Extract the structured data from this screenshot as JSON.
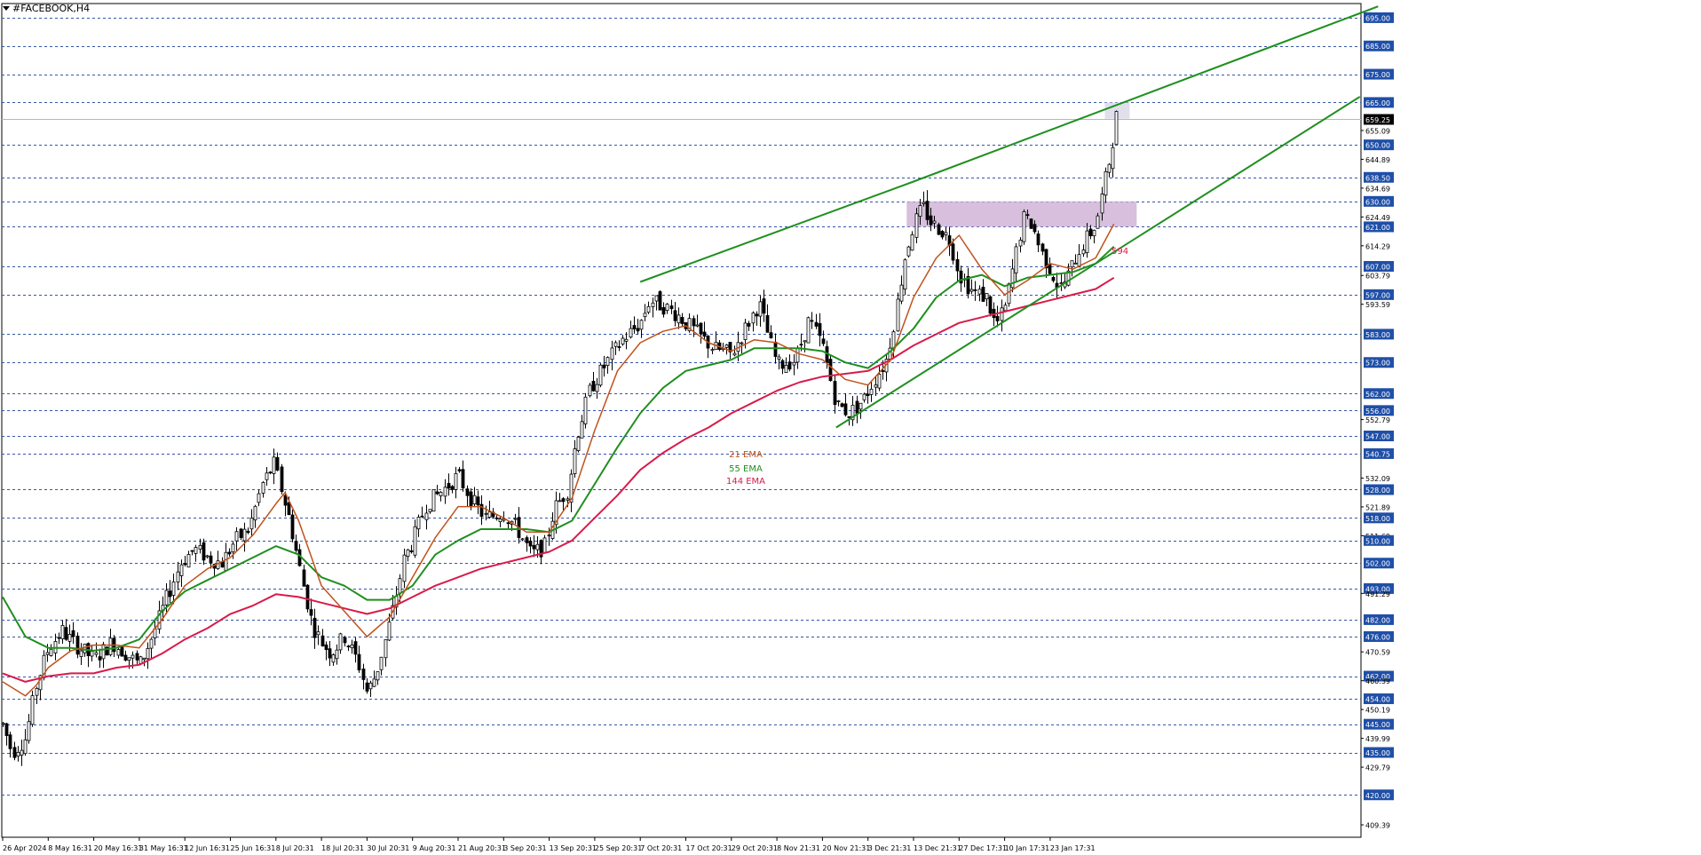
{
  "window": {
    "title": "#FACEBOOK,H4"
  },
  "colors": {
    "background": "#ffffff",
    "grid": "#3355aa",
    "candle": "#000000",
    "ema21": "#c0521b",
    "ema55": "#1f8f1f",
    "ema144": "#d81b4a",
    "trendline": "#1f8f1f",
    "zone": "#c9a9d1",
    "label_bg": "#1f4fa8",
    "current_bg": "#000000"
  },
  "chart_data": {
    "type": "candlestick",
    "title": "#FACEBOOK,H4",
    "ylim": [
      405,
      700
    ],
    "price_labels": [
      {
        "text": "695.00",
        "value": 695,
        "level": true
      },
      {
        "text": "685.00",
        "value": 685,
        "level": true
      },
      {
        "text": "675.00",
        "value": 675,
        "level": true
      },
      {
        "text": "665.00",
        "value": 665,
        "level": true
      },
      {
        "text": "655.09",
        "value": 655.09,
        "level": false
      },
      {
        "text": "650.00",
        "value": 650,
        "level": true
      },
      {
        "text": "644.89",
        "value": 644.89,
        "level": false
      },
      {
        "text": "638.50",
        "value": 638.5,
        "level": true
      },
      {
        "text": "634.69",
        "value": 634.69,
        "level": false
      },
      {
        "text": "630.00",
        "value": 630,
        "level": true
      },
      {
        "text": "624.49",
        "value": 624.49,
        "level": false
      },
      {
        "text": "621.00",
        "value": 621,
        "level": true
      },
      {
        "text": "614.29",
        "value": 614.29,
        "level": false
      },
      {
        "text": "607.00",
        "value": 607,
        "level": true
      },
      {
        "text": "603.79",
        "value": 603.79,
        "level": false
      },
      {
        "text": "597.00",
        "value": 597,
        "level": true
      },
      {
        "text": "593.59",
        "value": 593.59,
        "level": false
      },
      {
        "text": "583.00",
        "value": 583,
        "level": true
      },
      {
        "text": "573.00",
        "value": 573,
        "level": true
      },
      {
        "text": "562.00",
        "value": 562,
        "level": true
      },
      {
        "text": "556.00",
        "value": 556,
        "level": true
      },
      {
        "text": "552.79",
        "value": 552.79,
        "level": false
      },
      {
        "text": "547.00",
        "value": 547,
        "level": true
      },
      {
        "text": "540.75",
        "value": 540.75,
        "level": true
      },
      {
        "text": "532.09",
        "value": 532.09,
        "level": false
      },
      {
        "text": "528.00",
        "value": 528,
        "level": true
      },
      {
        "text": "521.89",
        "value": 521.89,
        "level": false
      },
      {
        "text": "518.00",
        "value": 518,
        "level": true
      },
      {
        "text": "511.69",
        "value": 511.69,
        "level": false
      },
      {
        "text": "510.00",
        "value": 510,
        "level": true
      },
      {
        "text": "502.00",
        "value": 502,
        "level": true
      },
      {
        "text": "493.00",
        "value": 493,
        "level": true
      },
      {
        "text": "491.29",
        "value": 491.29,
        "level": false
      },
      {
        "text": "482.00",
        "value": 482,
        "level": true
      },
      {
        "text": "476.00",
        "value": 476,
        "level": true
      },
      {
        "text": "470.59",
        "value": 470.59,
        "level": false
      },
      {
        "text": "462.00",
        "value": 462,
        "level": true
      },
      {
        "text": "460.39",
        "value": 460.39,
        "level": false
      },
      {
        "text": "454.00",
        "value": 454,
        "level": true
      },
      {
        "text": "450.19",
        "value": 450.19,
        "level": false
      },
      {
        "text": "445.00",
        "value": 445,
        "level": true
      },
      {
        "text": "439.99",
        "value": 439.99,
        "level": false
      },
      {
        "text": "435.00",
        "value": 435,
        "level": true
      },
      {
        "text": "429.79",
        "value": 429.79,
        "level": false
      },
      {
        "text": "420.00",
        "value": 420,
        "level": true
      },
      {
        "text": "409.39",
        "value": 409.39,
        "level": false
      }
    ],
    "current_price": {
      "text": "659.25",
      "value": 659.25
    },
    "x_labels": [
      "26 Apr 2024",
      "8 May 16:31",
      "20 May 16:31",
      "31 May 16:31",
      "12 Jun 16:31",
      "25 Jun 16:31",
      "8 Jul 20:31",
      "18 Jul 20:31",
      "30 Jul 20:31",
      "9 Aug 20:31",
      "21 Aug 20:31",
      "3 Sep 20:31",
      "13 Sep 20:31",
      "25 Sep 20:31",
      "7 Oct 20:31",
      "17 Oct 20:31",
      "29 Oct 20:31",
      "8 Nov 21:31",
      "20 Nov 21:31",
      "3 Dec 21:31",
      "13 Dec 21:31",
      "27 Dec 17:31",
      "10 Jan 17:31",
      "23 Jan 17:31"
    ],
    "legend": [
      {
        "name": "21 EMA",
        "color": "#c0521b"
      },
      {
        "name": "55 EMA",
        "color": "#1f8f1f"
      },
      {
        "name": "144 EMA",
        "color": "#d81b4a"
      }
    ],
    "annotation": {
      "text": "594",
      "color": "#d81b4a",
      "x_index": 24.7,
      "y": 594
    },
    "zone": {
      "from_index": 19.85,
      "to_index": 24.9,
      "y_top": 630,
      "y_bottom": 621
    },
    "trendlines": [
      {
        "name": "upper",
        "points": [
          [
            14.0,
            601.5
          ],
          [
            20.0,
            637
          ],
          [
            30.2,
            699
          ]
        ]
      },
      {
        "name": "lower",
        "points": [
          [
            18.3,
            550
          ],
          [
            29.8,
            667
          ]
        ]
      }
    ],
    "price_path": [
      [
        0,
        445
      ],
      [
        0.2,
        435
      ],
      [
        0.5,
        440
      ],
      [
        0.75,
        460
      ],
      [
        1.0,
        472
      ],
      [
        1.3,
        478
      ],
      [
        1.6,
        473
      ],
      [
        2.0,
        468
      ],
      [
        2.4,
        474
      ],
      [
        2.7,
        470
      ],
      [
        3.0,
        466
      ],
      [
        3.3,
        477
      ],
      [
        3.6,
        490
      ],
      [
        3.9,
        502
      ],
      [
        4.2,
        507
      ],
      [
        4.5,
        504
      ],
      [
        4.8,
        502
      ],
      [
        5.1,
        510
      ],
      [
        5.4,
        514
      ],
      [
        5.7,
        530
      ],
      [
        5.95,
        537
      ],
      [
        6.1,
        529
      ],
      [
        6.3,
        517
      ],
      [
        6.6,
        494
      ],
      [
        6.8,
        480
      ],
      [
        7.0,
        474
      ],
      [
        7.2,
        470
      ],
      [
        7.5,
        476
      ],
      [
        7.8,
        467
      ],
      [
        8.0,
        456
      ],
      [
        8.2,
        463
      ],
      [
        8.4,
        475
      ],
      [
        8.6,
        488
      ],
      [
        8.8,
        503
      ],
      [
        9.0,
        510
      ],
      [
        9.3,
        523
      ],
      [
        9.6,
        527
      ],
      [
        10.0,
        533
      ],
      [
        10.3,
        524
      ],
      [
        10.6,
        518
      ],
      [
        11.0,
        520
      ],
      [
        11.3,
        514
      ],
      [
        11.6,
        505
      ],
      [
        11.9,
        508
      ],
      [
        12.1,
        521
      ],
      [
        12.4,
        528
      ],
      [
        12.6,
        547
      ],
      [
        12.9,
        564
      ],
      [
        13.3,
        574
      ],
      [
        13.6,
        581
      ],
      [
        14.0,
        587
      ],
      [
        14.2,
        595
      ],
      [
        14.5,
        593
      ],
      [
        14.8,
        590
      ],
      [
        15.2,
        584
      ],
      [
        15.6,
        578
      ],
      [
        16.0,
        576
      ],
      [
        16.3,
        585
      ],
      [
        16.6,
        594
      ],
      [
        17.0,
        572
      ],
      [
        17.4,
        574
      ],
      [
        17.7,
        588
      ],
      [
        18.0,
        579
      ],
      [
        18.3,
        558
      ],
      [
        18.6,
        555
      ],
      [
        18.9,
        560
      ],
      [
        19.1,
        566
      ],
      [
        19.4,
        574
      ],
      [
        19.6,
        590
      ],
      [
        19.8,
        610
      ],
      [
        20.0,
        622
      ],
      [
        20.2,
        628
      ],
      [
        20.4,
        622
      ],
      [
        20.6,
        620
      ],
      [
        20.8,
        616
      ],
      [
        21.0,
        604
      ],
      [
        21.3,
        598
      ],
      [
        21.6,
        596
      ],
      [
        21.8,
        586
      ],
      [
        22.0,
        592
      ],
      [
        22.2,
        608
      ],
      [
        22.4,
        624
      ],
      [
        22.6,
        622
      ],
      [
        22.8,
        612
      ],
      [
        23.0,
        606
      ],
      [
        23.2,
        599
      ],
      [
        23.4,
        604
      ],
      [
        23.6,
        612
      ],
      [
        24.0,
        622
      ],
      [
        24.3,
        645
      ],
      [
        24.45,
        660
      ]
    ],
    "ema21": [
      [
        0,
        460
      ],
      [
        0.5,
        455
      ],
      [
        0.75,
        459
      ],
      [
        1.0,
        465
      ],
      [
        1.5,
        471
      ],
      [
        2.0,
        473
      ],
      [
        2.5,
        473
      ],
      [
        3.0,
        472
      ],
      [
        3.5,
        482
      ],
      [
        4.0,
        494
      ],
      [
        4.5,
        500
      ],
      [
        5.0,
        504
      ],
      [
        5.5,
        512
      ],
      [
        6.0,
        523
      ],
      [
        6.2,
        527
      ],
      [
        6.5,
        517
      ],
      [
        7.0,
        494
      ],
      [
        7.5,
        485
      ],
      [
        8.0,
        476
      ],
      [
        8.5,
        483
      ],
      [
        9.0,
        497
      ],
      [
        9.5,
        511
      ],
      [
        10.0,
        522
      ],
      [
        10.5,
        522
      ],
      [
        11.0,
        518
      ],
      [
        11.5,
        513
      ],
      [
        12.0,
        513
      ],
      [
        12.5,
        525
      ],
      [
        13.0,
        549
      ],
      [
        13.5,
        570
      ],
      [
        14.0,
        580
      ],
      [
        14.5,
        584
      ],
      [
        15.0,
        586
      ],
      [
        15.5,
        580
      ],
      [
        16.0,
        577
      ],
      [
        16.5,
        581
      ],
      [
        17.0,
        580
      ],
      [
        17.5,
        576
      ],
      [
        18.0,
        574
      ],
      [
        18.5,
        567
      ],
      [
        19.0,
        565
      ],
      [
        19.5,
        574
      ],
      [
        20.0,
        596
      ],
      [
        20.5,
        610
      ],
      [
        21.0,
        618
      ],
      [
        21.5,
        606
      ],
      [
        22.0,
        597
      ],
      [
        22.5,
        602
      ],
      [
        23.0,
        608
      ],
      [
        23.5,
        606
      ],
      [
        24.0,
        610
      ],
      [
        24.4,
        622
      ]
    ],
    "ema55": [
      [
        0,
        490
      ],
      [
        0.5,
        476
      ],
      [
        1.0,
        472
      ],
      [
        1.5,
        472
      ],
      [
        2.0,
        471
      ],
      [
        2.5,
        472
      ],
      [
        3.0,
        475
      ],
      [
        3.5,
        485
      ],
      [
        4.0,
        492
      ],
      [
        4.5,
        496
      ],
      [
        5.0,
        500
      ],
      [
        5.5,
        504
      ],
      [
        6.0,
        508
      ],
      [
        6.5,
        505
      ],
      [
        7.0,
        497
      ],
      [
        7.5,
        494
      ],
      [
        8.0,
        489
      ],
      [
        8.5,
        489
      ],
      [
        9.0,
        494
      ],
      [
        9.5,
        505
      ],
      [
        10.0,
        510
      ],
      [
        10.5,
        514
      ],
      [
        11.0,
        514
      ],
      [
        11.5,
        514
      ],
      [
        12.0,
        513
      ],
      [
        12.5,
        517
      ],
      [
        13.0,
        530
      ],
      [
        13.5,
        543
      ],
      [
        14.0,
        555
      ],
      [
        14.5,
        564
      ],
      [
        15.0,
        570
      ],
      [
        15.5,
        572
      ],
      [
        16.0,
        574
      ],
      [
        16.5,
        578
      ],
      [
        17.0,
        578
      ],
      [
        17.5,
        578
      ],
      [
        18.0,
        577
      ],
      [
        18.5,
        573
      ],
      [
        19.0,
        571
      ],
      [
        19.5,
        577
      ],
      [
        20.0,
        585
      ],
      [
        20.5,
        596
      ],
      [
        21.0,
        602
      ],
      [
        21.5,
        604
      ],
      [
        22.0,
        600
      ],
      [
        22.5,
        603
      ],
      [
        23.0,
        604
      ],
      [
        23.5,
        605
      ],
      [
        24.0,
        608
      ],
      [
        24.4,
        614
      ]
    ],
    "ema144": [
      [
        0,
        463
      ],
      [
        0.5,
        460
      ],
      [
        1.0,
        462
      ],
      [
        1.5,
        463
      ],
      [
        2.0,
        463
      ],
      [
        2.5,
        465
      ],
      [
        3.0,
        466
      ],
      [
        3.5,
        470
      ],
      [
        4.0,
        475
      ],
      [
        4.5,
        479
      ],
      [
        5.0,
        484
      ],
      [
        5.5,
        487
      ],
      [
        6.0,
        491
      ],
      [
        6.5,
        490
      ],
      [
        7.0,
        488
      ],
      [
        7.5,
        486
      ],
      [
        8.0,
        484
      ],
      [
        8.5,
        486
      ],
      [
        9.0,
        490
      ],
      [
        9.5,
        494
      ],
      [
        10.0,
        497
      ],
      [
        10.5,
        500
      ],
      [
        11.0,
        502
      ],
      [
        11.5,
        504
      ],
      [
        12.0,
        506
      ],
      [
        12.5,
        510
      ],
      [
        13.0,
        518
      ],
      [
        13.5,
        526
      ],
      [
        14.0,
        535
      ],
      [
        14.5,
        541
      ],
      [
        15.0,
        546
      ],
      [
        15.5,
        550
      ],
      [
        16.0,
        555
      ],
      [
        16.5,
        559
      ],
      [
        17.0,
        563
      ],
      [
        17.5,
        566
      ],
      [
        18.0,
        568
      ],
      [
        18.5,
        569
      ],
      [
        19.0,
        570
      ],
      [
        19.5,
        574
      ],
      [
        20.0,
        579
      ],
      [
        20.5,
        583
      ],
      [
        21.0,
        587
      ],
      [
        21.5,
        589
      ],
      [
        22.0,
        591
      ],
      [
        22.5,
        593
      ],
      [
        23.0,
        595
      ],
      [
        23.5,
        597
      ],
      [
        24.0,
        599
      ],
      [
        24.4,
        603
      ]
    ]
  }
}
